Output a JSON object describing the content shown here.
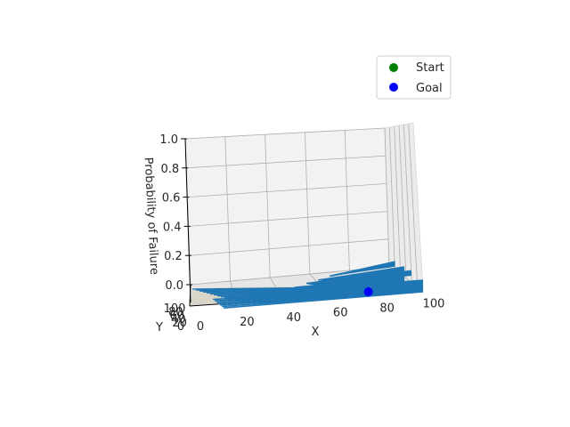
{
  "chart_data": {
    "type": "surface3d",
    "xlabel": "X",
    "ylabel": "Y",
    "zlabel": "Probability of Failure",
    "xlim": [
      0,
      100
    ],
    "ylim": [
      0,
      100
    ],
    "zlim": [
      0,
      1
    ],
    "x_ticks": [
      "0",
      "20",
      "40",
      "60",
      "80",
      "100"
    ],
    "y_ticks": [
      "0",
      "20",
      "40",
      "60",
      "80",
      "100"
    ],
    "z_ticks": [
      "0.0",
      "0.2",
      "0.4",
      "0.6",
      "0.8",
      "1.0"
    ],
    "grid": true,
    "legend_position": "top-right",
    "series": [
      {
        "name": "Start",
        "marker": "circle",
        "color": "#008000"
      },
      {
        "name": "Goal",
        "marker": "circle",
        "color": "#0000ff",
        "point": {
          "x": 72,
          "y": 0,
          "z": 0
        }
      },
      {
        "name": "",
        "color": "#1f77b4",
        "surface_ridges": [
          {
            "x_start": 10,
            "x_end": 100,
            "z": 0.0
          },
          {
            "x_start": 25,
            "x_end": 100,
            "z": 0.02
          },
          {
            "x_start": 40,
            "x_end": 100,
            "z": 0.05
          },
          {
            "x_start": 45,
            "x_end": 92,
            "z": 0.08
          },
          {
            "x_start": 50,
            "x_end": 95,
            "z": 0.12
          },
          {
            "x_start": 55,
            "x_end": 92,
            "z": 0.15
          },
          {
            "x_start": 60,
            "x_end": 88,
            "z": 0.19
          }
        ]
      }
    ],
    "colors": {
      "surface": "#1f77b4",
      "pane": "#f2f2f2",
      "grid": "#b0b0b0"
    }
  }
}
